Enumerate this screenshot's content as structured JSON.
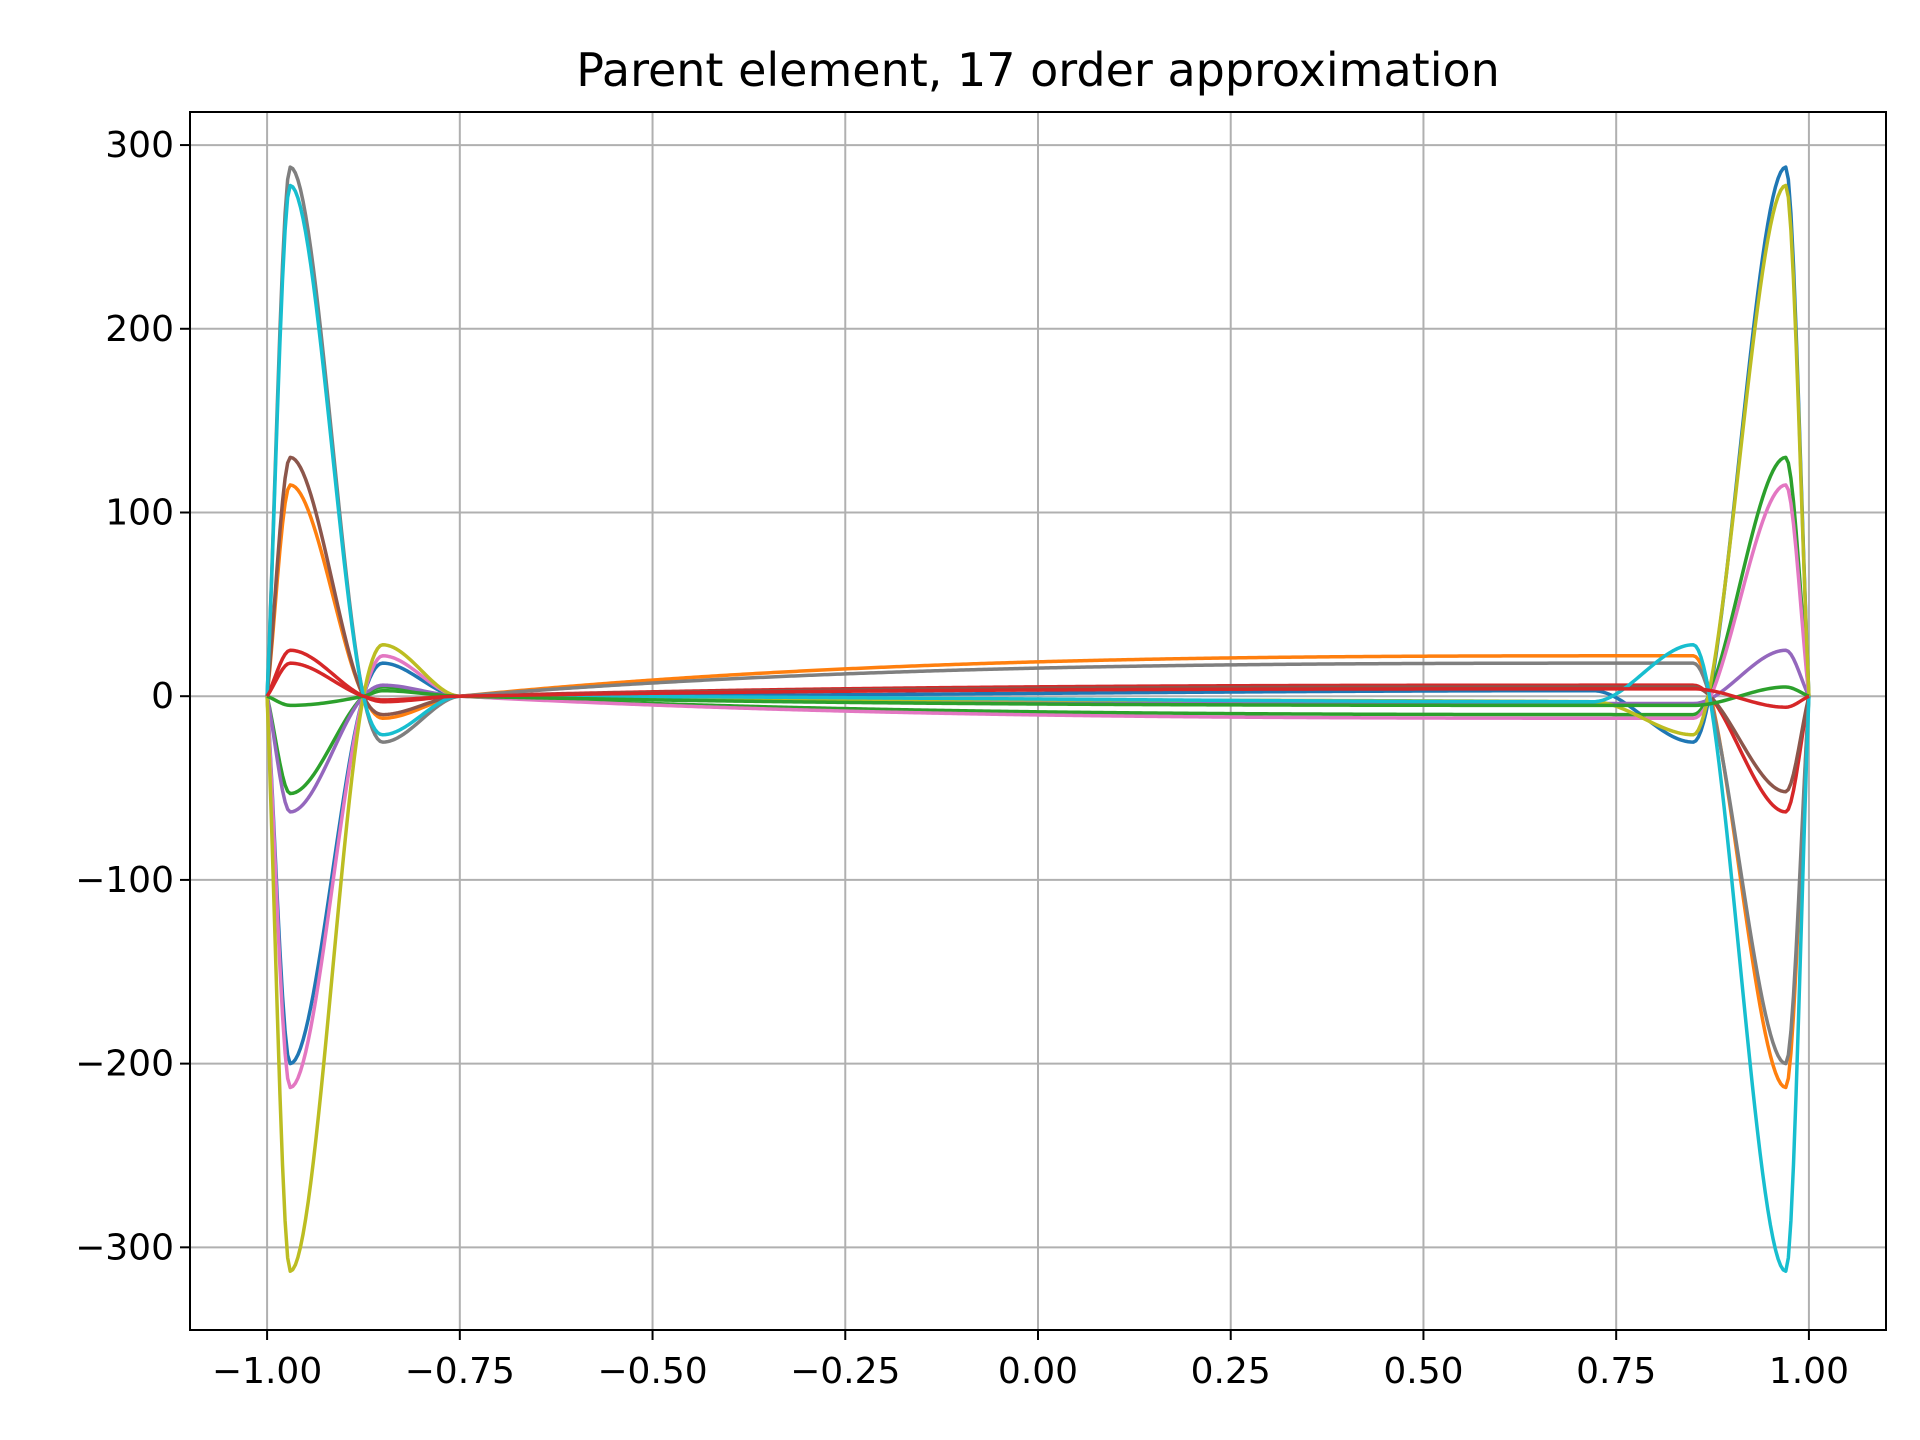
{
  "chart_data": {
    "type": "line",
    "title": "Parent element, 17 order approximation",
    "xlabel": "",
    "ylabel": "",
    "xlim": [
      -1.1,
      1.1
    ],
    "ylim": [
      -345,
      318
    ],
    "xticks": [
      -1.0,
      -0.75,
      -0.5,
      -0.25,
      0.0,
      0.25,
      0.5,
      0.75,
      1.0
    ],
    "xtick_labels": [
      "−1.00",
      "−0.75",
      "−0.50",
      "−0.25",
      "0.00",
      "0.25",
      "0.50",
      "0.75",
      "1.00"
    ],
    "yticks": [
      -300,
      -200,
      -100,
      0,
      100,
      200,
      300
    ],
    "ytick_labels": [
      "−300",
      "−200",
      "−100",
      "0",
      "100",
      "200",
      "300"
    ],
    "grid": true,
    "legend": "none",
    "nodes": [
      -1.0,
      -0.875,
      -0.75,
      0.0,
      0.75,
      0.875,
      1.0
    ],
    "series": [
      {
        "color": "#1f77b4",
        "points": [
          [
            -1.0,
            0
          ],
          [
            -0.97,
            -200
          ],
          [
            -0.875,
            0
          ],
          [
            -0.85,
            18
          ],
          [
            -0.75,
            0
          ],
          [
            0.72,
            3
          ],
          [
            0.85,
            -25
          ],
          [
            0.97,
            288
          ],
          [
            1.0,
            0
          ]
        ]
      },
      {
        "color": "#ff7f0e",
        "points": [
          [
            -1.0,
            0
          ],
          [
            -0.97,
            115
          ],
          [
            -0.875,
            0
          ],
          [
            -0.85,
            -12
          ],
          [
            -0.75,
            0
          ],
          [
            0.85,
            22
          ],
          [
            0.97,
            -213
          ],
          [
            1.0,
            0
          ]
        ]
      },
      {
        "color": "#2ca02c",
        "points": [
          [
            -1.0,
            0
          ],
          [
            -0.97,
            -53
          ],
          [
            -0.875,
            0
          ],
          [
            -0.85,
            5
          ],
          [
            -0.75,
            0
          ],
          [
            0.85,
            -10
          ],
          [
            0.97,
            130
          ],
          [
            1.0,
            0
          ]
        ]
      },
      {
        "color": "#d62728",
        "points": [
          [
            -1.0,
            0
          ],
          [
            -0.97,
            25
          ],
          [
            -0.875,
            0
          ],
          [
            -0.85,
            -3
          ],
          [
            -0.75,
            0
          ],
          [
            0.85,
            6
          ],
          [
            0.97,
            -63
          ],
          [
            1.0,
            0
          ]
        ]
      },
      {
        "color": "#9467bd",
        "points": [
          [
            -1.0,
            0
          ],
          [
            -0.97,
            -63
          ],
          [
            -0.875,
            0
          ],
          [
            -0.85,
            6
          ],
          [
            -0.75,
            0
          ],
          [
            0.85,
            -4
          ],
          [
            0.97,
            25
          ],
          [
            1.0,
            0
          ]
        ]
      },
      {
        "color": "#8c564b",
        "points": [
          [
            -1.0,
            0
          ],
          [
            -0.97,
            130
          ],
          [
            -0.875,
            0
          ],
          [
            -0.85,
            -10
          ],
          [
            -0.75,
            0
          ],
          [
            0.85,
            5
          ],
          [
            0.97,
            -52
          ],
          [
            1.0,
            0
          ]
        ]
      },
      {
        "color": "#e377c2",
        "points": [
          [
            -1.0,
            0
          ],
          [
            -0.97,
            -213
          ],
          [
            -0.875,
            0
          ],
          [
            -0.85,
            22
          ],
          [
            -0.75,
            0
          ],
          [
            0.85,
            -12
          ],
          [
            0.97,
            115
          ],
          [
            1.0,
            0
          ]
        ]
      },
      {
        "color": "#7f7f7f",
        "points": [
          [
            -1.0,
            0
          ],
          [
            -0.97,
            288
          ],
          [
            -0.875,
            0
          ],
          [
            -0.85,
            -25
          ],
          [
            -0.75,
            0
          ],
          [
            0.85,
            18
          ],
          [
            0.97,
            -200
          ],
          [
            1.0,
            0
          ]
        ]
      },
      {
        "color": "#bcbd22",
        "points": [
          [
            -1.0,
            0
          ],
          [
            -0.97,
            -313
          ],
          [
            -0.875,
            0
          ],
          [
            -0.85,
            28
          ],
          [
            -0.75,
            0
          ],
          [
            0.72,
            -3
          ],
          [
            0.85,
            -21
          ],
          [
            0.97,
            278
          ],
          [
            1.0,
            0
          ]
        ]
      },
      {
        "color": "#17becf",
        "points": [
          [
            -1.0,
            0
          ],
          [
            -0.97,
            278
          ],
          [
            -0.875,
            0
          ],
          [
            -0.85,
            -21
          ],
          [
            -0.75,
            0
          ],
          [
            0.72,
            -3
          ],
          [
            0.85,
            28
          ],
          [
            0.97,
            -313
          ],
          [
            1.0,
            0
          ]
        ]
      },
      {
        "color": "#2ca02c",
        "points": [
          [
            -1.0,
            0
          ],
          [
            -0.97,
            -5
          ],
          [
            -0.875,
            0
          ],
          [
            -0.85,
            3
          ],
          [
            -0.75,
            0
          ],
          [
            0.85,
            -5
          ],
          [
            0.97,
            5
          ],
          [
            1.0,
            0
          ]
        ]
      },
      {
        "color": "#d62728",
        "points": [
          [
            -1.0,
            0
          ],
          [
            -0.97,
            18
          ],
          [
            -0.875,
            0
          ],
          [
            -0.85,
            -2
          ],
          [
            -0.75,
            0
          ],
          [
            0.85,
            4
          ],
          [
            0.97,
            -6
          ],
          [
            1.0,
            0
          ]
        ]
      }
    ]
  }
}
